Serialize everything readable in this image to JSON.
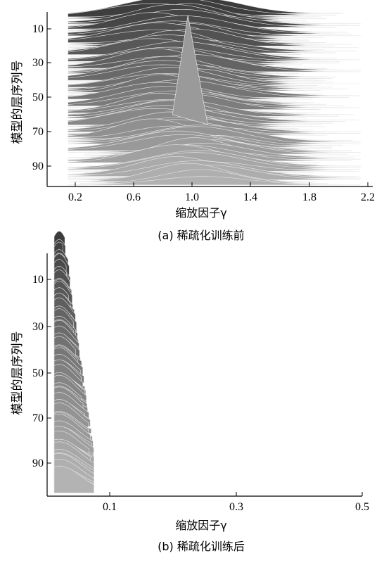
{
  "chart_data": [
    {
      "type": "area",
      "panel": "a",
      "caption": "(a) 稀疏化训练前",
      "xlabel": "缩放因子γ",
      "ylabel": "模型的层序列号",
      "xticks": [
        "0.2",
        "0.6",
        "1.0",
        "1.4",
        "1.8",
        "2.2"
      ],
      "yticks": [
        "10",
        "30",
        "50",
        "70",
        "90"
      ],
      "xlim": [
        0.0,
        2.2
      ],
      "ylim": [
        1,
        104
      ],
      "shape": {
        "center": 0.9,
        "spread": 0.22,
        "peak_layer": 2,
        "peak_value": 0.97
      },
      "colors": [
        "#3c3c3c",
        "#b4b4b4"
      ]
    },
    {
      "type": "area",
      "panel": "b",
      "caption": "(b) 稀疏化训练后",
      "xlabel": "缩放因子γ",
      "ylabel": "模型的层序列号",
      "xticks": [
        "0.1",
        "0.3",
        "0.5"
      ],
      "yticks": [
        "10",
        "30",
        "50",
        "70",
        "90"
      ],
      "xlim": [
        0.0,
        0.5
      ],
      "ylim": [
        1,
        104
      ],
      "shape": {
        "center": 0.03,
        "spread": 0.02,
        "max_value": 0.075
      },
      "colors": [
        "#3c3c3c",
        "#b4b4b4"
      ]
    }
  ]
}
